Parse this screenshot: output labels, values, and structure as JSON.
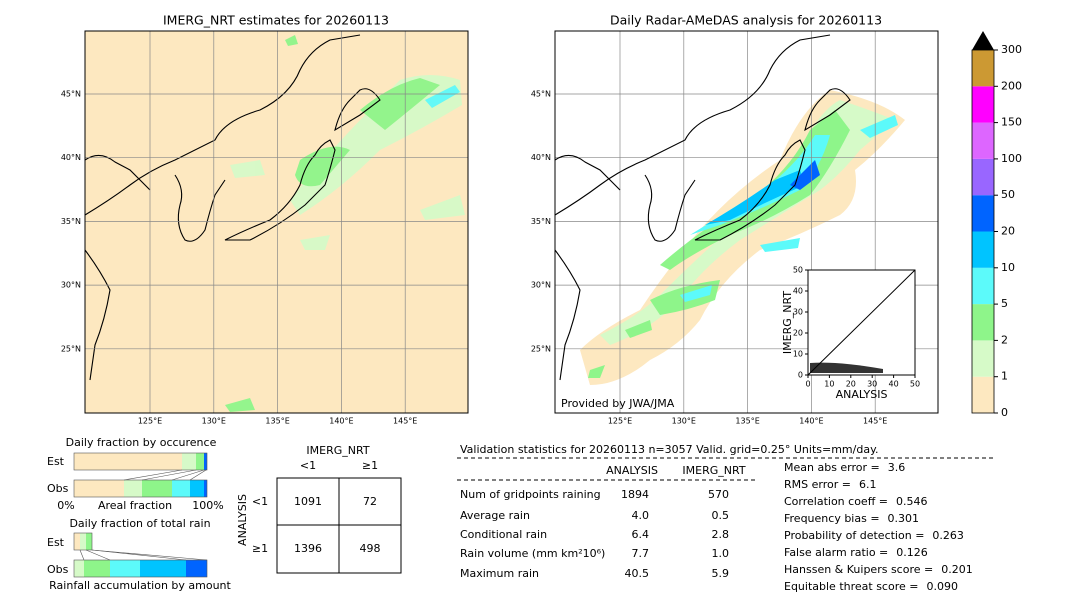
{
  "maps": [
    {
      "title": "IMERG_NRT estimates for 20260113"
    },
    {
      "title": "Daily Radar-AMeDAS analysis for 20260113",
      "credit": "Provided by JWA/JMA"
    }
  ],
  "map_axes": {
    "lon_labels": [
      "125°E",
      "130°E",
      "135°E",
      "140°E",
      "145°E"
    ],
    "lat_labels": [
      "45°N",
      "40°N",
      "35°N",
      "30°N",
      "25°N"
    ]
  },
  "colorbar": {
    "ticks": [
      0,
      1,
      2,
      5,
      10,
      20,
      50,
      100,
      150,
      200,
      300
    ],
    "colors": [
      "#fde8c0",
      "#d6fac8",
      "#8ef58a",
      "#5cfafa",
      "#00c4ff",
      "#0064ff",
      "#9966ff",
      "#dd66ff",
      "#ff00ff",
      "#cc9933"
    ],
    "extend_color": "#000000"
  },
  "scatter": {
    "xlabel": "ANALYSIS",
    "ylabel": "IMERG_NRT",
    "xlim": [
      0,
      50
    ],
    "ylim": [
      0,
      50
    ],
    "xticks": [
      0,
      10,
      20,
      30,
      40,
      50
    ],
    "yticks": [
      0,
      10,
      20,
      30,
      40,
      50
    ]
  },
  "occurrence": {
    "title": "Daily fraction by occurence",
    "rows": [
      "Est",
      "Obs"
    ],
    "axis_labels": [
      "0%",
      "Areal fraction",
      "100%"
    ]
  },
  "total_rain": {
    "title": "Daily fraction of total rain",
    "rows": [
      "Est",
      "Obs"
    ],
    "xlabel": "Rainfall accumulation by amount"
  },
  "contingency": {
    "col_title": "IMERG_NRT",
    "cols": [
      "<1",
      "≥1"
    ],
    "row_title": "ANALYSIS",
    "rows": [
      "<1",
      "≥1"
    ],
    "cells": [
      [
        1091,
        72
      ],
      [
        1396,
        498
      ]
    ]
  },
  "validation": {
    "header": "Validation statistics for 20260113  n=3057 Valid. grid=0.25° Units=mm/day.",
    "columns": [
      "ANALYSIS",
      "IMERG_NRT"
    ],
    "rows": [
      {
        "label": "Num of gridpoints raining",
        "values": [
          "1894",
          "570"
        ]
      },
      {
        "label": "Average rain",
        "values": [
          "4.0",
          "0.5"
        ]
      },
      {
        "label": "Conditional rain",
        "values": [
          "6.4",
          "2.8"
        ]
      },
      {
        "label": "Rain volume (mm km²10⁶)",
        "values": [
          "7.7",
          "1.0"
        ]
      },
      {
        "label": "Maximum rain",
        "values": [
          "40.5",
          "5.9"
        ]
      }
    ],
    "metrics": [
      {
        "label": "Mean abs error =",
        "value": "3.6"
      },
      {
        "label": "RMS error =",
        "value": "6.1"
      },
      {
        "label": "Correlation coeff =",
        "value": "0.546"
      },
      {
        "label": "Frequency bias =",
        "value": "0.301"
      },
      {
        "label": "Probability of detection =",
        "value": "0.263"
      },
      {
        "label": "False alarm ratio =",
        "value": "0.126"
      },
      {
        "label": "Hanssen & Kuipers score =",
        "value": "0.201"
      },
      {
        "label": "Equitable threat score =",
        "value": "0.090"
      }
    ]
  }
}
